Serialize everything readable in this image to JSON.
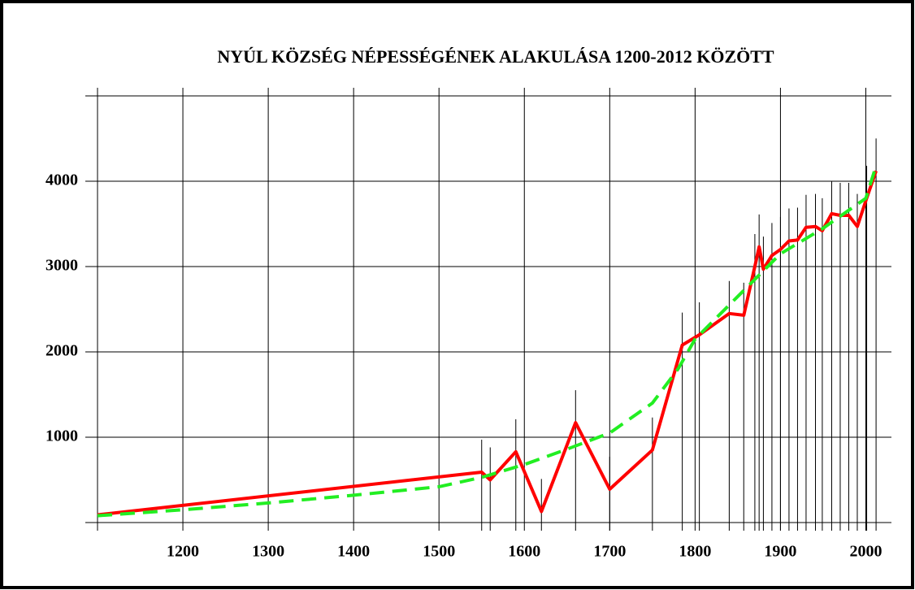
{
  "chart_data": {
    "type": "line",
    "title": "NYÚL KÖZSÉG NÉPESSÉGÉNEK ALAKULÁSA 1200-2012 KÖZÖTT",
    "xlim": [
      1100,
      2030
    ],
    "xticks": [
      1200,
      1300,
      1400,
      1500,
      1600,
      1700,
      1800,
      1900,
      2000
    ],
    "ylim": [
      0,
      5000
    ],
    "yticks": [
      1000,
      2000,
      3000,
      4000
    ],
    "grid": true,
    "series": [
      {
        "color": "#ff0000",
        "dash": false,
        "x": [
          1100,
          1550,
          1560,
          1590,
          1620,
          1660,
          1700,
          1750,
          1785,
          1805,
          1840,
          1857,
          1870,
          1875,
          1880,
          1890,
          1900,
          1910,
          1920,
          1930,
          1941,
          1949,
          1960,
          1970,
          1980,
          1990,
          2001,
          2012
        ],
        "values": [
          90,
          590,
          500,
          830,
          130,
          1170,
          390,
          850,
          2080,
          2200,
          2450,
          2430,
          3000,
          3230,
          2970,
          3130,
          3200,
          3300,
          3310,
          3460,
          3470,
          3420,
          3620,
          3600,
          3600,
          3470,
          3800,
          4120
        ]
      },
      {
        "color": "#22ee22",
        "dash": true,
        "x": [
          1100,
          1200,
          1300,
          1400,
          1500,
          1550,
          1600,
          1650,
          1700,
          1750,
          1780,
          1800,
          1850,
          1900,
          1950,
          2000,
          2012
        ],
        "values": [
          80,
          150,
          230,
          320,
          420,
          530,
          680,
          860,
          1050,
          1400,
          1800,
          2150,
          2650,
          3150,
          3450,
          3800,
          4180
        ]
      }
    ]
  }
}
